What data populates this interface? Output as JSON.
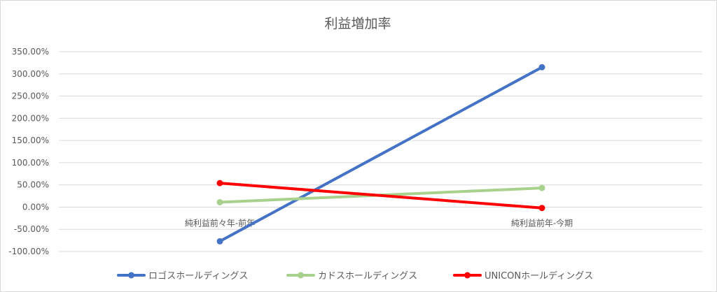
{
  "chart_data": {
    "type": "line",
    "title": "利益増加率",
    "xlabel": "",
    "ylabel": "",
    "categories": [
      "純利益前々年-前年",
      "純利益前年-今期"
    ],
    "ylim": [
      -100,
      350
    ],
    "yticks": [
      350,
      300,
      250,
      200,
      150,
      100,
      50,
      0,
      -50,
      -100
    ],
    "ytick_labels": [
      "350.00%",
      "300.00%",
      "250.00%",
      "200.00%",
      "150.00%",
      "100.00%",
      "50.00%",
      "0.00%",
      "-50.00%",
      "-100.00%"
    ],
    "grid": true,
    "legend_position": "bottom",
    "series": [
      {
        "name": "ロゴスホールディングス",
        "values": [
          -77,
          315
        ],
        "color": "#4472C4"
      },
      {
        "name": "カドスホールディングス",
        "values": [
          11,
          43
        ],
        "color": "#A9D18E"
      },
      {
        "name": "UNICONホールディングス",
        "values": [
          54,
          -2
        ],
        "color": "#FF0000"
      }
    ]
  }
}
